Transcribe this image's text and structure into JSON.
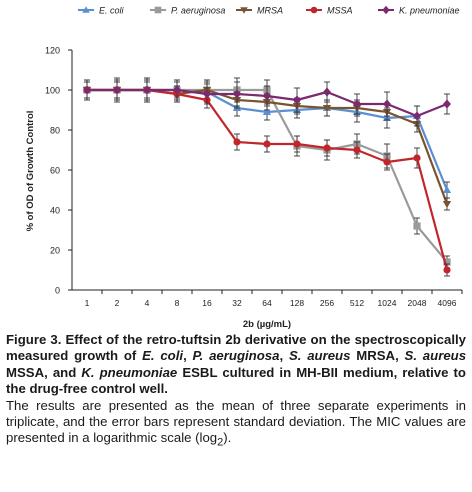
{
  "chart_data": {
    "type": "line",
    "title": "",
    "xlabel": "2b (µg/mL)",
    "ylabel": "% of OD of Growth Control",
    "categories": [
      "1",
      "2",
      "4",
      "8",
      "16",
      "32",
      "64",
      "128",
      "256",
      "512",
      "1024",
      "2048",
      "4096"
    ],
    "yticks": [
      0,
      20,
      40,
      60,
      80,
      100,
      120
    ],
    "ylim": [
      0,
      120
    ],
    "grid": false,
    "legend_position": "top",
    "series": [
      {
        "name": "E. coli",
        "color": "#5b8fd1",
        "marker": "triangle",
        "values": [
          100,
          100,
          100,
          100,
          99,
          91,
          89,
          90,
          91,
          89,
          86,
          87,
          50
        ],
        "errors": [
          4,
          5,
          5,
          4,
          5,
          4,
          4,
          4,
          4,
          5,
          5,
          5,
          4
        ]
      },
      {
        "name": "P. aeruginosa",
        "color": "#9a9a9a",
        "marker": "square",
        "values": [
          100,
          100,
          100,
          100,
          100,
          100,
          100,
          72,
          70,
          73,
          67,
          32,
          14
        ],
        "errors": [
          5,
          6,
          6,
          5,
          5,
          6,
          5,
          5,
          5,
          5,
          6,
          4,
          3
        ]
      },
      {
        "name": "MRSA",
        "color": "#7a5430",
        "marker": "triangle-down",
        "values": [
          100,
          100,
          100,
          98,
          100,
          95,
          94,
          92,
          91,
          91,
          89,
          83,
          43
        ],
        "errors": [
          4,
          4,
          5,
          4,
          5,
          4,
          4,
          4,
          4,
          4,
          4,
          4,
          3
        ]
      },
      {
        "name": "MSSA",
        "color": "#c0262c",
        "marker": "circle",
        "values": [
          100,
          100,
          100,
          98,
          95,
          74,
          73,
          73,
          71,
          70,
          64,
          66,
          10
        ],
        "errors": [
          4,
          4,
          4,
          4,
          4,
          4,
          4,
          4,
          4,
          4,
          4,
          5,
          3
        ]
      },
      {
        "name": "K. pneumoniae",
        "color": "#7b2a6e",
        "marker": "diamond",
        "values": [
          100,
          100,
          100,
          100,
          98,
          98,
          97,
          95,
          99,
          93,
          93,
          87,
          93
        ],
        "errors": [
          5,
          5,
          6,
          5,
          5,
          6,
          5,
          6,
          5,
          5,
          6,
          5,
          5
        ]
      }
    ]
  },
  "caption": {
    "bold_parts": [
      {
        "t": "Figure 3. Effect of the retro-tuftsin 2b derivative on the spectroscopically measured growth of ",
        "i": false
      },
      {
        "t": "E. coli",
        "i": true
      },
      {
        "t": ", ",
        "i": false
      },
      {
        "t": "P. aeruginosa",
        "i": true
      },
      {
        "t": ", ",
        "i": false
      },
      {
        "t": "S. aureus",
        "i": true
      },
      {
        "t": " MRSA, ",
        "i": false
      },
      {
        "t": "S. aureus",
        "i": true
      },
      {
        "t": " MSSA, and ",
        "i": false
      },
      {
        "t": "K. pneumoniae",
        "i": true
      },
      {
        "t": " ESBL cultured in MH-BII medium, relative to the drug-free control well.",
        "i": false
      }
    ],
    "body": "The results are presented as the mean of three separate experiments in triplicate, and the error bars represent standard deviation. The MIC values are presented in a logarithmic scale (log",
    "body_sub": "2",
    "body_end": ")."
  }
}
